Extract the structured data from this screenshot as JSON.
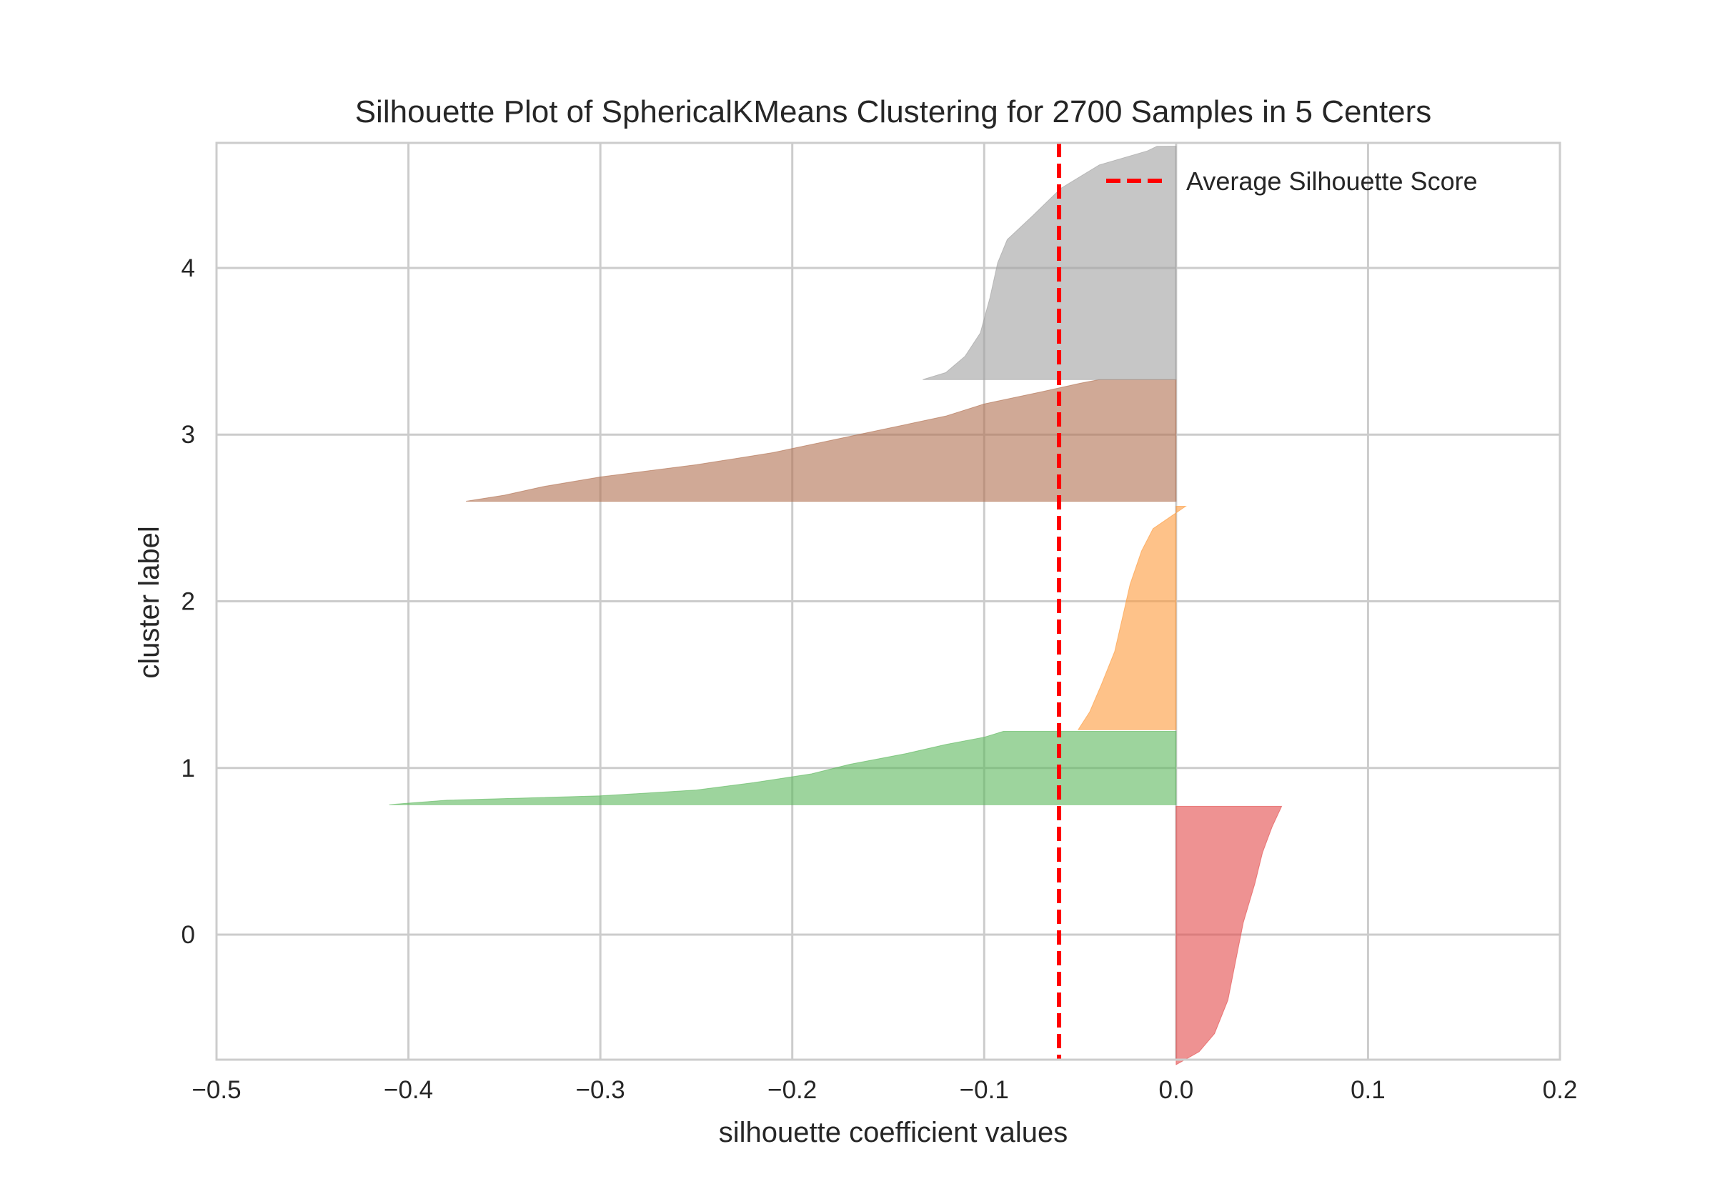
{
  "chart_data": {
    "type": "area",
    "title": "Silhouette Plot of SphericalKMeans Clustering for 2700 Samples in 5 Centers",
    "xlabel": "silhouette coefficient values",
    "ylabel": "cluster label",
    "xlim": [
      -0.5,
      0.2
    ],
    "ylim": [
      -0.75,
      4.75
    ],
    "x_ticks": [
      -0.5,
      -0.4,
      -0.3,
      -0.2,
      -0.1,
      0.0,
      0.1,
      0.2
    ],
    "x_tick_labels": [
      "−0.5",
      "−0.4",
      "−0.3",
      "−0.2",
      "−0.1",
      "0.0",
      "0.1",
      "0.2"
    ],
    "y_ticks": [
      0,
      1,
      2,
      3,
      4
    ],
    "y_tick_labels": [
      "0",
      "1",
      "2",
      "3",
      "4"
    ],
    "grid": true,
    "legend": {
      "position": "top-right",
      "entries": [
        "Average Silhouette Score"
      ]
    },
    "average_silhouette_score": -0.061,
    "series": [
      {
        "cluster": 0,
        "color": "#e24a4a",
        "y_range": [
          -0.78,
          0.77
        ],
        "profile": [
          [
            0,
            0.0
          ],
          [
            0.05,
            0.012
          ],
          [
            0.12,
            0.02
          ],
          [
            0.25,
            0.027
          ],
          [
            0.4,
            0.031
          ],
          [
            0.55,
            0.035
          ],
          [
            0.7,
            0.041
          ],
          [
            0.82,
            0.045
          ],
          [
            0.92,
            0.05
          ],
          [
            1,
            0.055
          ]
        ]
      },
      {
        "cluster": 1,
        "color": "#5cb85c",
        "y_range": [
          0.78,
          1.22
        ],
        "profile": [
          [
            0,
            -0.41
          ],
          [
            0.02,
            -0.4
          ],
          [
            0.06,
            -0.38
          ],
          [
            0.12,
            -0.3
          ],
          [
            0.2,
            -0.25
          ],
          [
            0.3,
            -0.22
          ],
          [
            0.42,
            -0.19
          ],
          [
            0.55,
            -0.17
          ],
          [
            0.7,
            -0.14
          ],
          [
            0.82,
            -0.12
          ],
          [
            0.92,
            -0.1
          ],
          [
            1,
            -0.09
          ]
        ]
      },
      {
        "cluster": 2,
        "color": "#fd9a3a",
        "y_range": [
          1.23,
          2.57
        ],
        "profile": [
          [
            0,
            -0.051
          ],
          [
            0.08,
            -0.045
          ],
          [
            0.2,
            -0.039
          ],
          [
            0.35,
            -0.032
          ],
          [
            0.5,
            -0.028
          ],
          [
            0.65,
            -0.024
          ],
          [
            0.8,
            -0.018
          ],
          [
            0.9,
            -0.012
          ],
          [
            1,
            0.005
          ]
        ]
      },
      {
        "cluster": 3,
        "color": "#b07050",
        "y_range": [
          2.6,
          3.33
        ],
        "profile": [
          [
            0,
            -0.37
          ],
          [
            0.05,
            -0.35
          ],
          [
            0.12,
            -0.33
          ],
          [
            0.2,
            -0.3
          ],
          [
            0.3,
            -0.25
          ],
          [
            0.4,
            -0.21
          ],
          [
            0.5,
            -0.18
          ],
          [
            0.6,
            -0.15
          ],
          [
            0.7,
            -0.12
          ],
          [
            0.8,
            -0.1
          ],
          [
            0.9,
            -0.07
          ],
          [
            0.97,
            -0.05
          ],
          [
            1,
            -0.04
          ]
        ]
      },
      {
        "cluster": 4,
        "color": "#a0a0a0",
        "y_range": [
          3.33,
          4.73
        ],
        "profile": [
          [
            0,
            -0.132
          ],
          [
            0.03,
            -0.12
          ],
          [
            0.1,
            -0.11
          ],
          [
            0.2,
            -0.102
          ],
          [
            0.35,
            -0.097
          ],
          [
            0.5,
            -0.093
          ],
          [
            0.6,
            -0.088
          ],
          [
            0.7,
            -0.075
          ],
          [
            0.82,
            -0.06
          ],
          [
            0.92,
            -0.04
          ],
          [
            0.98,
            -0.015
          ],
          [
            1,
            -0.01
          ]
        ]
      }
    ]
  }
}
